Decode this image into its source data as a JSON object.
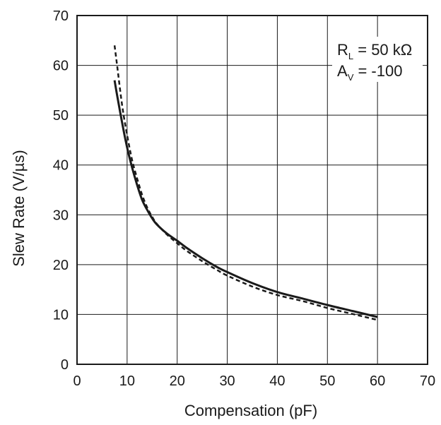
{
  "chart_data": {
    "type": "line",
    "title": "",
    "xlabel": "Compensation (pF)",
    "ylabel": "Slew Rate (V/µs)",
    "xlim": [
      0,
      70
    ],
    "ylim": [
      0,
      70
    ],
    "xticks": [
      "0",
      "10",
      "20",
      "30",
      "40",
      "50",
      "60",
      "70"
    ],
    "yticks": [
      "0",
      "10",
      "20",
      "30",
      "40",
      "50",
      "60",
      "70"
    ],
    "grid": true,
    "legend": null,
    "annotations": [
      {
        "main": "R",
        "sub": "L",
        "rest": " = 50 kΩ"
      },
      {
        "main": "A",
        "sub": "V",
        "rest": " = -100"
      }
    ],
    "series": [
      {
        "style": "solid",
        "color": "#1a1a1a",
        "points": [
          [
            7.5,
            57
          ],
          [
            8,
            54
          ],
          [
            9,
            48.5
          ],
          [
            10,
            43.5
          ],
          [
            11,
            39.5
          ],
          [
            12,
            36
          ],
          [
            13,
            33
          ],
          [
            14,
            31
          ],
          [
            15,
            29.3
          ],
          [
            16,
            28
          ],
          [
            18,
            26.2
          ],
          [
            20,
            24.8
          ],
          [
            22,
            23.3
          ],
          [
            25,
            21.3
          ],
          [
            28,
            19.5
          ],
          [
            30,
            18.5
          ],
          [
            35,
            16.3
          ],
          [
            40,
            14.5
          ],
          [
            45,
            13.2
          ],
          [
            50,
            11.9
          ],
          [
            55,
            10.7
          ],
          [
            60,
            9.5
          ]
        ]
      },
      {
        "style": "dashed",
        "color": "#1a1a1a",
        "points": [
          [
            7.5,
            64
          ],
          [
            8,
            60
          ],
          [
            9,
            52
          ],
          [
            10,
            46
          ],
          [
            11,
            41
          ],
          [
            12,
            37.3
          ],
          [
            13,
            34
          ],
          [
            14,
            31.5
          ],
          [
            15,
            29.6
          ],
          [
            16,
            28.1
          ],
          [
            18,
            26
          ],
          [
            20,
            24.3
          ],
          [
            22,
            22.7
          ],
          [
            25,
            20.7
          ],
          [
            28,
            18.9
          ],
          [
            30,
            17.8
          ],
          [
            35,
            15.6
          ],
          [
            40,
            13.9
          ],
          [
            45,
            12.7
          ],
          [
            50,
            11.3
          ],
          [
            55,
            10.1
          ],
          [
            60,
            8.9
          ]
        ]
      }
    ]
  }
}
